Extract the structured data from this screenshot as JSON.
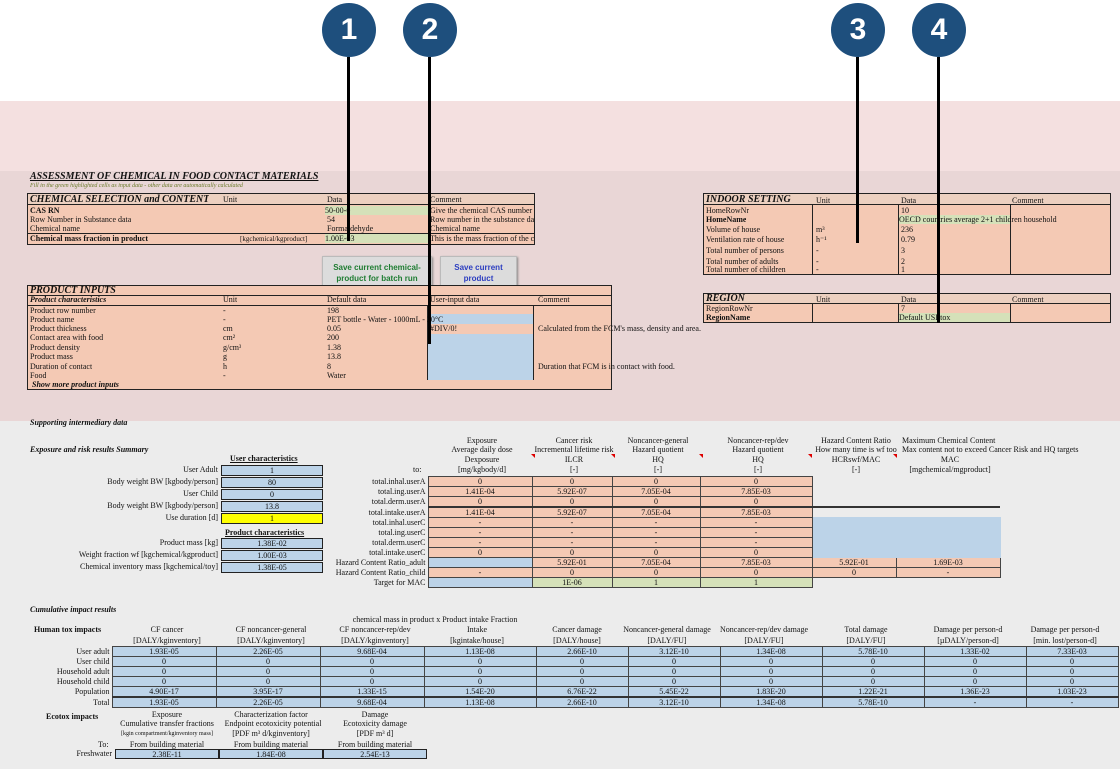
{
  "markers": [
    "1",
    "2",
    "3",
    "4"
  ],
  "header": {
    "title": "ASSESSMENT OF CHEMICAL IN FOOD CONTACT MATERIALS",
    "subtitle": "Fill in the green highlighted cells as input data - other data are automatically calculated"
  },
  "chemical": {
    "title": "CHEMICAL SELECTION and CONTENT",
    "col_unit": "Unit",
    "col_data": "Data",
    "col_comment": "Comment",
    "rows": [
      {
        "label": "CAS RN",
        "unit": "",
        "data": "50-00-0",
        "comment": "Give the chemical CAS number t"
      },
      {
        "label": "Row Number in Substance data",
        "unit": "",
        "data": "54",
        "comment": "Row number in the substance da"
      },
      {
        "label": "Chemical name",
        "unit": "",
        "data": "Formaldehyde",
        "comment": "Chemical name"
      },
      {
        "label": "Chemical mass fraction in product",
        "unit": "[kgchemical/kgproduct]",
        "data": "1.00E-03",
        "comment": "This is the mass fraction of the c"
      }
    ]
  },
  "buttons": {
    "save_batch": "Save current chemical-product for batch run",
    "save_product": "Save current product"
  },
  "product": {
    "title": "PRODUCT INPUTS",
    "col_char": "Product characteristics",
    "col_unit": "Unit",
    "col_default": "Default data",
    "col_user": "User-input data",
    "col_comment": "Comment",
    "rows": [
      {
        "label": "Product row number",
        "unit": "-",
        "default": "198",
        "user": "",
        "comment": ""
      },
      {
        "label": "Product name",
        "unit": "-",
        "default": "PET bottle - Water - 1000mL - 20°C",
        "user": "",
        "comment": ""
      },
      {
        "label": "Product thickness",
        "unit": "cm",
        "default": "0.05",
        "user": "#DIV/0!",
        "comment": "Calculated from the FCM's mass, density and area."
      },
      {
        "label": "Contact area with food",
        "unit": "cm²",
        "default": "200",
        "user": "",
        "comment": ""
      },
      {
        "label": "Product density",
        "unit": "g/cm³",
        "default": "1.38",
        "user": "",
        "comment": ""
      },
      {
        "label": "Product mass",
        "unit": "g",
        "default": "13.8",
        "user": "",
        "comment": ""
      },
      {
        "label": "Duration of contact",
        "unit": "h",
        "default": "8",
        "user": "",
        "comment": "Duration that FCM is in contact with food."
      },
      {
        "label": "Food",
        "unit": "-",
        "default": "Water",
        "user": "",
        "comment": ""
      }
    ],
    "more": "Show more product inputs"
  },
  "indoor": {
    "title": "INDOOR SETTING",
    "col_unit": "Unit",
    "col_data": "Data",
    "col_comment": "Comment",
    "rows": [
      {
        "label": "HomeRowNr",
        "unit": "",
        "data": "10"
      },
      {
        "label": "HomeName",
        "unit": "",
        "data": "OECD countries average 2+1 children household"
      },
      {
        "label": "Volume of house",
        "unit": "m³",
        "data": "236"
      },
      {
        "label": "Ventilation rate of house",
        "unit": "h⁻¹",
        "data": "0.79"
      },
      {
        "label": "Total number of persons",
        "unit": "-",
        "data": "3"
      },
      {
        "label": "Total number of adults",
        "unit": "-",
        "data": "2"
      },
      {
        "label": "Total number of children",
        "unit": "-",
        "data": "1"
      }
    ]
  },
  "region": {
    "title": "REGION",
    "col_unit": "Unit",
    "col_data": "Data",
    "col_comment": "Comment",
    "rows": [
      {
        "label": "RegionRowNr",
        "unit": "",
        "data": "7"
      },
      {
        "label": "RegionName",
        "unit": "",
        "data": "Default USEtox"
      }
    ]
  },
  "supporting": "Supporting intermediary data",
  "exposure": {
    "title": "Exposure and risk results Summary",
    "user_char_title": "User characteristics",
    "user_rows": [
      {
        "label": "User Adult",
        "value": "1"
      },
      {
        "label": "Body weight BW [kgbody/person]",
        "value": "80"
      },
      {
        "label": "User Child",
        "value": "0"
      },
      {
        "label": "Body weight BW [kgbody/person]",
        "value": "13.8"
      },
      {
        "label": "Use duration [d]",
        "value": "1"
      }
    ],
    "prod_char_title": "Product characteristics",
    "prod_rows": [
      {
        "label": "Product mass [kg]",
        "value": "1.38E-02"
      },
      {
        "label": "Weight fraction wf [kgchemical/kgproduct]",
        "value": "1.00E-03"
      },
      {
        "label": "Chemical inventory mass [kgchemical/toy]",
        "value": "1.38E-05"
      }
    ],
    "col_headers": [
      {
        "l1": "Exposure",
        "l2": "Average daily dose",
        "l3": "Dexposure",
        "unit": "[mg/kgbody/d]"
      },
      {
        "l1": "Cancer risk",
        "l2": "Incremental lifetime risk",
        "l3": "ILCR",
        "unit": "[-]"
      },
      {
        "l1": "Noncancer-general",
        "l2": "Hazard quotient",
        "l3": "HQ",
        "unit": "[-]"
      },
      {
        "l1": "Noncancer-rep/dev",
        "l2": "Hazard quotient",
        "l3": "HQ",
        "unit": "[-]"
      },
      {
        "l1": "Hazard Content Ratio",
        "l2": "How many time is wf too",
        "l3": "HCRswf/MAC",
        "unit": "[-]"
      },
      {
        "l1": "Maximum Chemical Content",
        "l2": "Max content not to exceed Cancer Risk and HQ targets",
        "l3": "MAC",
        "unit": "[mgchemical/mgproduct]"
      }
    ],
    "to_label": "to:",
    "rows": [
      {
        "label": "total.inhal.userA",
        "v": [
          "0",
          "0",
          "0",
          "0",
          "",
          ""
        ]
      },
      {
        "label": "total.ing.userA",
        "v": [
          "1.41E-04",
          "5.92E-07",
          "7.05E-04",
          "7.85E-03",
          "",
          ""
        ]
      },
      {
        "label": "total.derm.userA",
        "v": [
          "0",
          "0",
          "0",
          "0",
          "",
          ""
        ]
      },
      {
        "label": "total.intake.userA",
        "v": [
          "1.41E-04",
          "5.92E-07",
          "7.05E-04",
          "7.85E-03",
          "",
          ""
        ]
      },
      {
        "label": "total.inhal.userC",
        "v": [
          "-",
          "-",
          "-",
          "-",
          "",
          ""
        ]
      },
      {
        "label": "total.ing.userC",
        "v": [
          "-",
          "-",
          "-",
          "-",
          "",
          ""
        ]
      },
      {
        "label": "total.derm.userC",
        "v": [
          "-",
          "-",
          "-",
          "-",
          "",
          ""
        ]
      },
      {
        "label": "total.intake.userC",
        "v": [
          "0",
          "0",
          "0",
          "0",
          "",
          ""
        ]
      },
      {
        "label": "Hazard Content Ratio_adult",
        "v": [
          "",
          "5.92E-01",
          "7.05E-04",
          "7.85E-03",
          "5.92E-01",
          "1.69E-03"
        ]
      },
      {
        "label": "Hazard Content Ratio_child",
        "v": [
          "-",
          "0",
          "0",
          "0",
          "0",
          "-"
        ]
      },
      {
        "label": "Target for MAC",
        "v": [
          "",
          "1E-06",
          "1",
          "1",
          "",
          ""
        ]
      }
    ]
  },
  "cumulative": {
    "title": "Cumulative impact results",
    "human_label": "Human tox impacts",
    "col_headers": [
      {
        "l1": "CF cancer",
        "l2": "",
        "unit": "[DALY/kginventory]"
      },
      {
        "l1": "CF noncancer-general",
        "l2": "",
        "unit": "[DALY/kginventory]"
      },
      {
        "l1": "CF noncancer-rep/dev",
        "l2": "",
        "unit": "[DALY/kginventory]"
      },
      {
        "l1": "chemical mass in product x Product intake Fraction",
        "l2": "Intake",
        "unit": "[kgintake/house]"
      },
      {
        "l1": "Cancer damage",
        "l2": "",
        "unit": "[DALY/house]"
      },
      {
        "l1": "Noncancer-general damage",
        "l2": "",
        "unit": "[DALY/FU]"
      },
      {
        "l1": "Noncancer-rep/dev damage",
        "l2": "",
        "unit": "[DALY/FU]"
      },
      {
        "l1": "Total damage",
        "l2": "",
        "unit": "[DALY/FU]"
      },
      {
        "l1": "Damage per person-d",
        "l2": "",
        "unit": "[µDALY/person-d]"
      },
      {
        "l1": "Damage per person-d",
        "l2": "",
        "unit": "[min. lost/person-d]"
      }
    ],
    "rows": [
      {
        "label": "User adult",
        "v": [
          "1.93E-05",
          "2.26E-05",
          "9.68E-04",
          "1.13E-08",
          "2.66E-10",
          "3.12E-10",
          "1.34E-08",
          "5.78E-10",
          "1.33E-02",
          "7.33E-03"
        ]
      },
      {
        "label": "User child",
        "v": [
          "0",
          "0",
          "0",
          "0",
          "0",
          "0",
          "0",
          "0",
          "0",
          "0"
        ]
      },
      {
        "label": "Household adult",
        "v": [
          "0",
          "0",
          "0",
          "0",
          "0",
          "0",
          "0",
          "0",
          "0",
          "0"
        ]
      },
      {
        "label": "Household child",
        "v": [
          "0",
          "0",
          "0",
          "0",
          "0",
          "0",
          "0",
          "0",
          "0",
          "0"
        ]
      },
      {
        "label": "Population",
        "v": [
          "4.90E-17",
          "3.95E-17",
          "1.33E-15",
          "1.54E-20",
          "6.76E-22",
          "5.45E-22",
          "1.83E-20",
          "1.22E-21",
          "1.36E-23",
          "1.03E-23"
        ]
      },
      {
        "label": "Total",
        "v": [
          "1.93E-05",
          "2.26E-05",
          "9.68E-04",
          "1.13E-08",
          "2.66E-10",
          "3.12E-10",
          "1.34E-08",
          "5.78E-10",
          "-",
          "-"
        ]
      }
    ]
  },
  "ecotox": {
    "label": "Ecotox impacts",
    "col_headers": [
      {
        "l1": "Exposure",
        "l2": "Cumulative transfer fractions",
        "unit": "[kgin compartment/kginventory mass]"
      },
      {
        "l1": "Characterization factor",
        "l2": "Endpoint ecotoxicity potential",
        "unit": "[PDF m³ d/kginventory]"
      },
      {
        "l1": "Damage",
        "l2": "Ecotoxicity damage",
        "unit": "[PDF m³ d]"
      }
    ],
    "to_label": "To:",
    "from_label": "From building material",
    "row_label": "Freshwater",
    "values": [
      "2.38E-11",
      "1.84E-08",
      "2.54E-13"
    ]
  },
  "colors": {
    "marker": "#1e4f7d",
    "salmon": "#f4c9b4",
    "green": "#d5e1b9",
    "blue": "#bcd3e8",
    "band_pink": "#f2dede",
    "band_grey": "#ececec"
  }
}
